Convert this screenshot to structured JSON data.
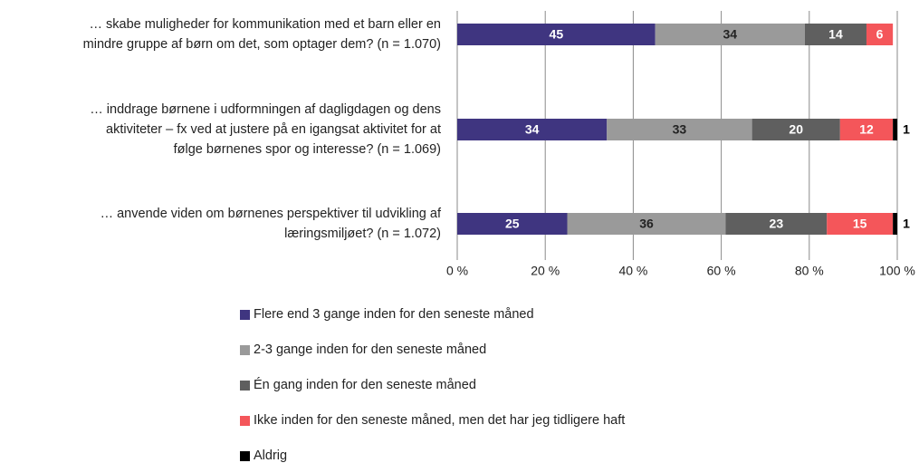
{
  "chart_data": {
    "type": "stacked-bar-horizontal",
    "categories": [
      "… skabe muligheder for kommunikation med et barn eller en\nmindre gruppe af børn om det, som optager dem? (n = 1.070)",
      "… inddrage børnene i udformningen af dagligdagen og dens\naktiviteter – fx ved at justere på en igangsat aktivitet for at\nfølge børnenes spor og interesse? (n = 1.069)",
      "… anvende viden om børnenes perspektiver til udvikling af\nlæringsmiljøet? (n = 1.072)"
    ],
    "series": [
      {
        "name": "Flere end 3 gange inden for den seneste måned",
        "color": "#3f3580",
        "label_color": "#ffffff",
        "values": [
          45,
          34,
          25
        ]
      },
      {
        "name": "2-3 gange inden for den seneste måned",
        "color": "#9a9a9a",
        "label_color": "#222222",
        "values": [
          34,
          33,
          36
        ]
      },
      {
        "name": "Én gang inden for den seneste måned",
        "color": "#5f5f5f",
        "label_color": "#ffffff",
        "values": [
          14,
          20,
          23
        ]
      },
      {
        "name": "Ikke inden for den seneste måned, men det har jeg tidligere haft",
        "color": "#f4565a",
        "label_color": "#ffffff",
        "values": [
          6,
          12,
          15
        ]
      },
      {
        "name": "Aldrig",
        "color": "#000000",
        "label_color": "#000000",
        "values": [
          null,
          1,
          1
        ]
      }
    ],
    "xlim": [
      0,
      100
    ],
    "xticks": [
      {
        "value": 0,
        "label": "0 %"
      },
      {
        "value": 20,
        "label": "20 %"
      },
      {
        "value": 40,
        "label": "40 %"
      },
      {
        "value": 60,
        "label": "60 %"
      },
      {
        "value": 80,
        "label": "80 %"
      },
      {
        "value": 100,
        "label": "100 %"
      }
    ],
    "grid": true
  }
}
